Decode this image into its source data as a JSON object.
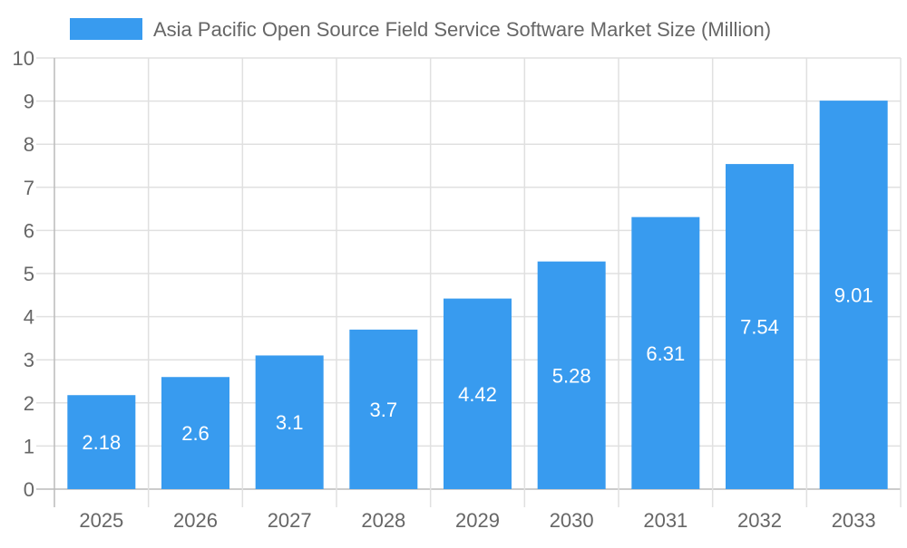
{
  "chart_data": {
    "type": "bar",
    "categories": [
      "2025",
      "2026",
      "2027",
      "2028",
      "2029",
      "2030",
      "2031",
      "2032",
      "2033"
    ],
    "series": [
      {
        "name": "Asia Pacific Open Source Field Service Software Market Size (Million)",
        "values": [
          2.18,
          2.6,
          3.1,
          3.7,
          4.42,
          5.28,
          6.31,
          7.54,
          9.01
        ],
        "color": "#389BEF"
      }
    ],
    "data_labels": [
      "2.18",
      "2.6",
      "3.1",
      "3.7",
      "4.42",
      "5.28",
      "6.31",
      "7.54",
      "9.01"
    ],
    "y_ticks": [
      "0",
      "1",
      "2",
      "3",
      "4",
      "5",
      "6",
      "7",
      "8",
      "9",
      "10"
    ],
    "ylim": [
      0,
      10
    ],
    "xlabel": "",
    "ylabel": "",
    "grid": true,
    "legend_position": "top"
  }
}
